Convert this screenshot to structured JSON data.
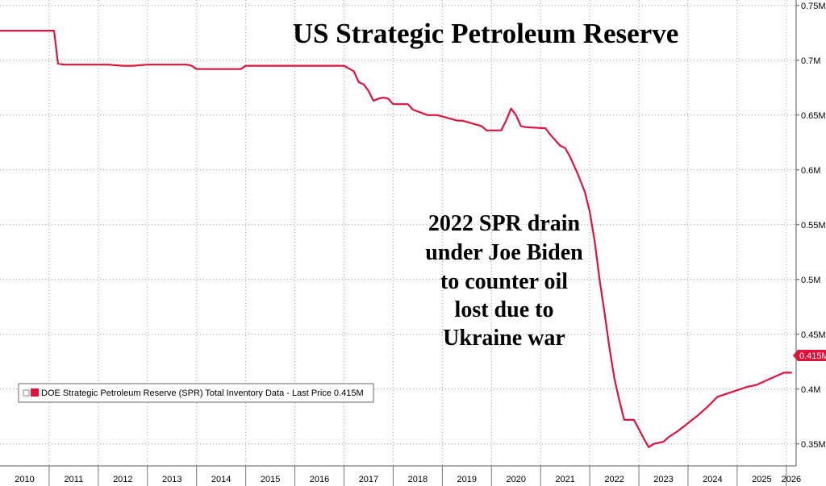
{
  "chart_data": {
    "type": "line",
    "title": "US Strategic Petroleum Reserve",
    "annotation": [
      "2022 SPR drain",
      "under Joe Biden",
      "to counter oil",
      "lost due to",
      "Ukraine war"
    ],
    "x_ticks": [
      "2010",
      "2011",
      "2012",
      "2013",
      "2014",
      "2015",
      "2016",
      "2017",
      "2018",
      "2019",
      "2020",
      "2021",
      "2022",
      "2023",
      "2024",
      "2025",
      "2026"
    ],
    "y_ticks": [
      "0.35M",
      "0.4M",
      "0.45M",
      "0.5M",
      "0.55M",
      "0.6M",
      "0.65M",
      "0.7M",
      "0.75M"
    ],
    "ylim": [
      0.33,
      0.755
    ],
    "xlim": [
      2010.0,
      2026.2
    ],
    "grid": true,
    "legend_position": "bottom-left",
    "last_price_label": "0.415M",
    "line_color": "#e0123c",
    "series": [
      {
        "name": "DOE Strategic Petroleum Reserve (SPR) Total Inventory Data - Last Price 0.415M",
        "x": [
          2010.0,
          2010.5,
          2011.0,
          2011.1,
          2011.18,
          2011.3,
          2011.5,
          2012.0,
          2012.2,
          2012.5,
          2012.7,
          2013.0,
          2013.5,
          2013.8,
          2013.9,
          2014.0,
          2014.5,
          2014.9,
          2015.0,
          2015.5,
          2016.0,
          2016.5,
          2017.0,
          2017.2,
          2017.3,
          2017.4,
          2017.5,
          2017.6,
          2017.7,
          2017.8,
          2017.9,
          2018.0,
          2018.3,
          2018.4,
          2018.7,
          2018.9,
          2019.3,
          2019.4,
          2019.8,
          2019.9,
          2020.2,
          2020.3,
          2020.4,
          2020.5,
          2020.6,
          2020.7,
          2021.1,
          2021.2,
          2021.4,
          2021.5,
          2021.6,
          2021.75,
          2021.9,
          2022.0,
          2022.1,
          2022.2,
          2022.3,
          2022.4,
          2022.5,
          2022.6,
          2022.7,
          2022.8,
          2022.9,
          2023.1,
          2023.2,
          2023.3,
          2023.4,
          2023.5,
          2023.6,
          2023.8,
          2024.0,
          2024.2,
          2024.4,
          2024.6,
          2024.8,
          2025.0,
          2025.2,
          2025.4,
          2025.6,
          2025.8,
          2025.95,
          2026.1
        ],
        "values": [
          0.727,
          0.727,
          0.727,
          0.727,
          0.697,
          0.696,
          0.696,
          0.696,
          0.696,
          0.695,
          0.695,
          0.696,
          0.696,
          0.696,
          0.695,
          0.692,
          0.692,
          0.692,
          0.695,
          0.695,
          0.695,
          0.695,
          0.695,
          0.69,
          0.68,
          0.678,
          0.672,
          0.663,
          0.665,
          0.666,
          0.665,
          0.66,
          0.66,
          0.655,
          0.65,
          0.65,
          0.645,
          0.645,
          0.64,
          0.636,
          0.636,
          0.645,
          0.656,
          0.65,
          0.64,
          0.639,
          0.638,
          0.632,
          0.622,
          0.62,
          0.612,
          0.597,
          0.58,
          0.562,
          0.535,
          0.5,
          0.47,
          0.438,
          0.41,
          0.39,
          0.372,
          0.372,
          0.372,
          0.355,
          0.347,
          0.35,
          0.351,
          0.352,
          0.356,
          0.362,
          0.369,
          0.376,
          0.384,
          0.393,
          0.396,
          0.399,
          0.402,
          0.404,
          0.408,
          0.412,
          0.415,
          0.415
        ]
      }
    ]
  }
}
